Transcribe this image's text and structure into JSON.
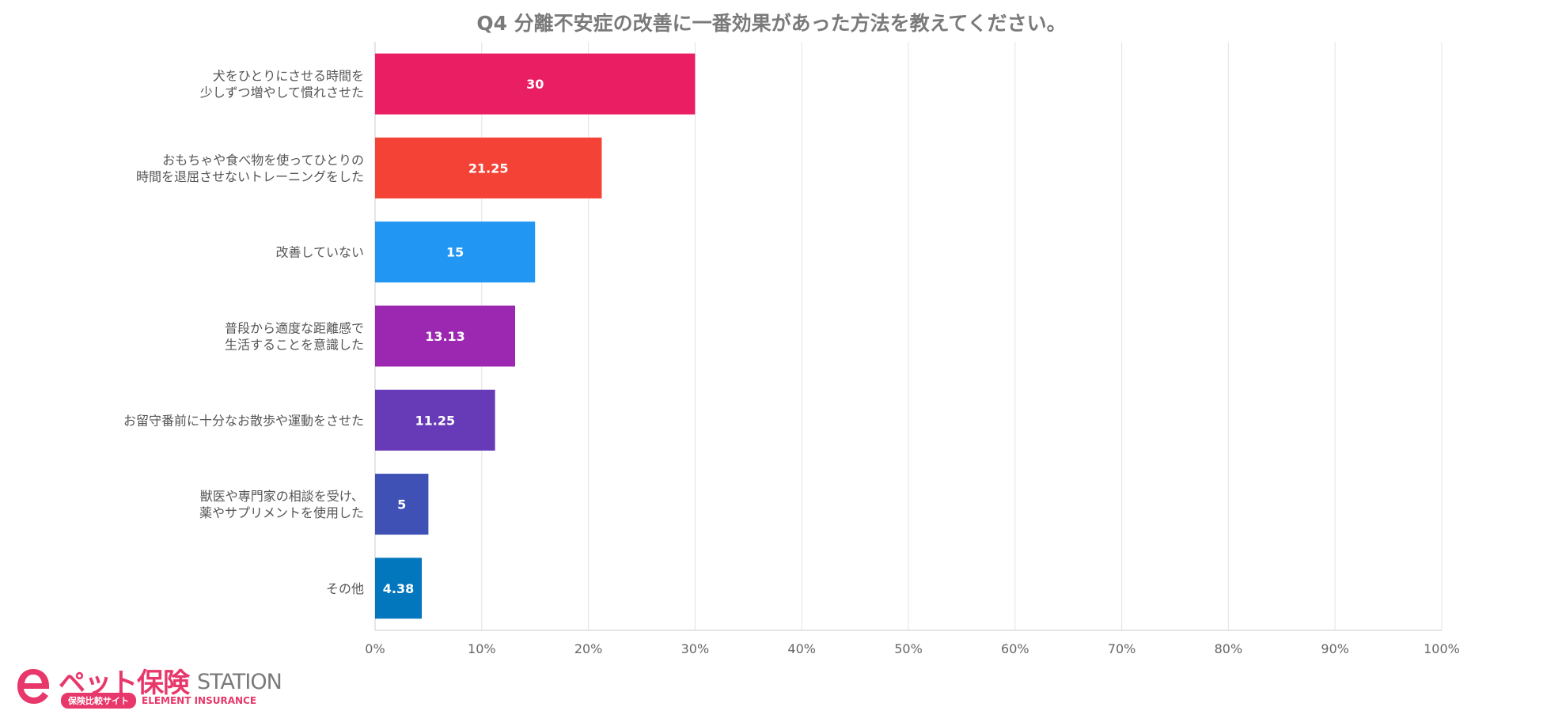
{
  "chart_data": {
    "type": "bar",
    "orientation": "horizontal",
    "title": "Q4 分離不安症の改善に一番効果があった方法を教えてください。",
    "categories": [
      [
        "犬をひとりにさせる時間を",
        "少しずつ増やして慣れさせた"
      ],
      [
        "おもちゃや食べ物を使ってひとりの",
        "時間を退屈させないトレーニングをした"
      ],
      [
        "改善していない"
      ],
      [
        "普段から適度な距離感で",
        "生活することを意識した"
      ],
      [
        "お留守番前に十分なお散歩や運動をさせた"
      ],
      [
        "獣医や専門家の相談を受け、",
        "薬やサプリメントを使用した"
      ],
      [
        "その他"
      ]
    ],
    "values": [
      30,
      21.25,
      15,
      13.13,
      11.25,
      5,
      4.38
    ],
    "value_labels": [
      "30",
      "21.25",
      "15",
      "13.13",
      "11.25",
      "5",
      "4.38"
    ],
    "bar_colors": [
      "#e91e63",
      "#f44336",
      "#2196f3",
      "#9c27b0",
      "#673ab7",
      "#3f51b5",
      "#0277bd"
    ],
    "xlim": [
      0,
      100
    ],
    "x_ticks": [
      0,
      10,
      20,
      30,
      40,
      50,
      60,
      70,
      80,
      90,
      100
    ],
    "x_tick_labels": [
      "0%",
      "10%",
      "20%",
      "30%",
      "40%",
      "50%",
      "60%",
      "70%",
      "80%",
      "90%",
      "100%"
    ],
    "grid": true,
    "legend": "none"
  },
  "logo": {
    "main_text": "ペット保険",
    "station_text": "STATION",
    "pill_text": "保険比較サイト",
    "sub_text": "ELEMENT INSURANCE",
    "brand_color": "#e8386b"
  }
}
